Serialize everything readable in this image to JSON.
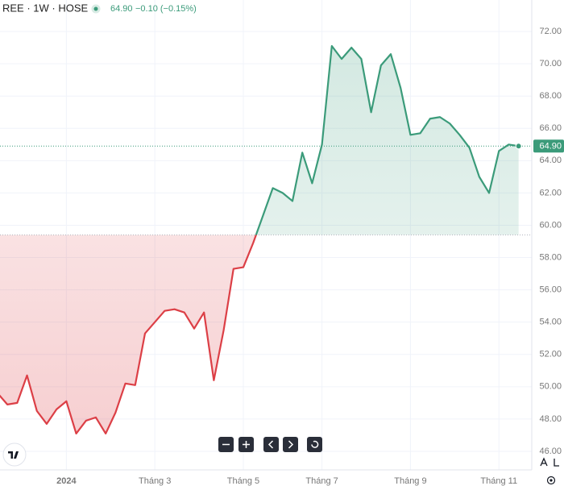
{
  "chart_data": {
    "type": "baseline",
    "symbol": "REE · 1W · HOSE",
    "last_price": "64.90",
    "change": "−0.10 (−0.15%)",
    "series": [
      {
        "x": [
          0,
          1,
          2,
          3,
          4,
          5,
          6,
          7,
          8,
          9,
          10,
          11,
          12,
          13,
          14,
          15,
          16,
          17,
          18,
          19,
          20,
          21,
          22,
          23,
          24,
          25,
          26,
          27,
          28,
          29,
          30,
          31,
          32,
          33,
          34,
          35,
          36,
          37,
          38,
          39,
          40,
          41,
          42,
          43,
          44,
          45,
          46,
          47,
          48,
          49,
          50,
          51,
          52,
          53
        ],
        "values": [
          49.6,
          48.9,
          49.0,
          50.7,
          48.5,
          47.7,
          48.6,
          49.1,
          47.1,
          47.9,
          48.1,
          47.1,
          48.4,
          50.2,
          50.1,
          53.3,
          54.0,
          54.7,
          54.8,
          54.6,
          53.6,
          54.6,
          50.4,
          53.5,
          57.3,
          57.4,
          58.9,
          60.6,
          62.3,
          62.0,
          61.5,
          64.5,
          62.6,
          65.0,
          71.1,
          70.3,
          71.0,
          70.3,
          67.0,
          69.9,
          70.6,
          68.5,
          65.6,
          65.7,
          66.6,
          66.7,
          66.3,
          65.6,
          64.8,
          63.0,
          62.0,
          64.6,
          65.0,
          64.9
        ]
      }
    ],
    "baseline": 59.4,
    "up_color": "#3b9b7a",
    "down_color": "#dc3f46",
    "xlim": [
      0.25,
      54.34
    ],
    "xticks": [
      {
        "value": 7,
        "label": "2024"
      },
      {
        "value": 16,
        "label": "Tháng 3"
      },
      {
        "value": 25,
        "label": "Tháng 5"
      },
      {
        "value": 33,
        "label": "Tháng 7"
      },
      {
        "value": 42,
        "label": "Tháng 9"
      },
      {
        "value": 51,
        "label": "Tháng 11"
      }
    ],
    "ylim": [
      44.85,
      73.95
    ],
    "yticks": [
      {
        "value": 46,
        "label": "46.00"
      },
      {
        "value": 48,
        "label": "48.00"
      },
      {
        "value": 50,
        "label": "50.00"
      },
      {
        "value": 52,
        "label": "52.00"
      },
      {
        "value": 54,
        "label": "54.00"
      },
      {
        "value": 56,
        "label": "56.00"
      },
      {
        "value": 58,
        "label": "58.00"
      },
      {
        "value": 60,
        "label": "60.00"
      },
      {
        "value": 62,
        "label": "62.00"
      },
      {
        "value": 64,
        "label": "64.00"
      },
      {
        "value": 66,
        "label": "66.00"
      },
      {
        "value": 68,
        "label": "68.00"
      },
      {
        "value": 70,
        "label": "70.00"
      },
      {
        "value": 72,
        "label": "72.00"
      }
    ],
    "grid": true
  }
}
